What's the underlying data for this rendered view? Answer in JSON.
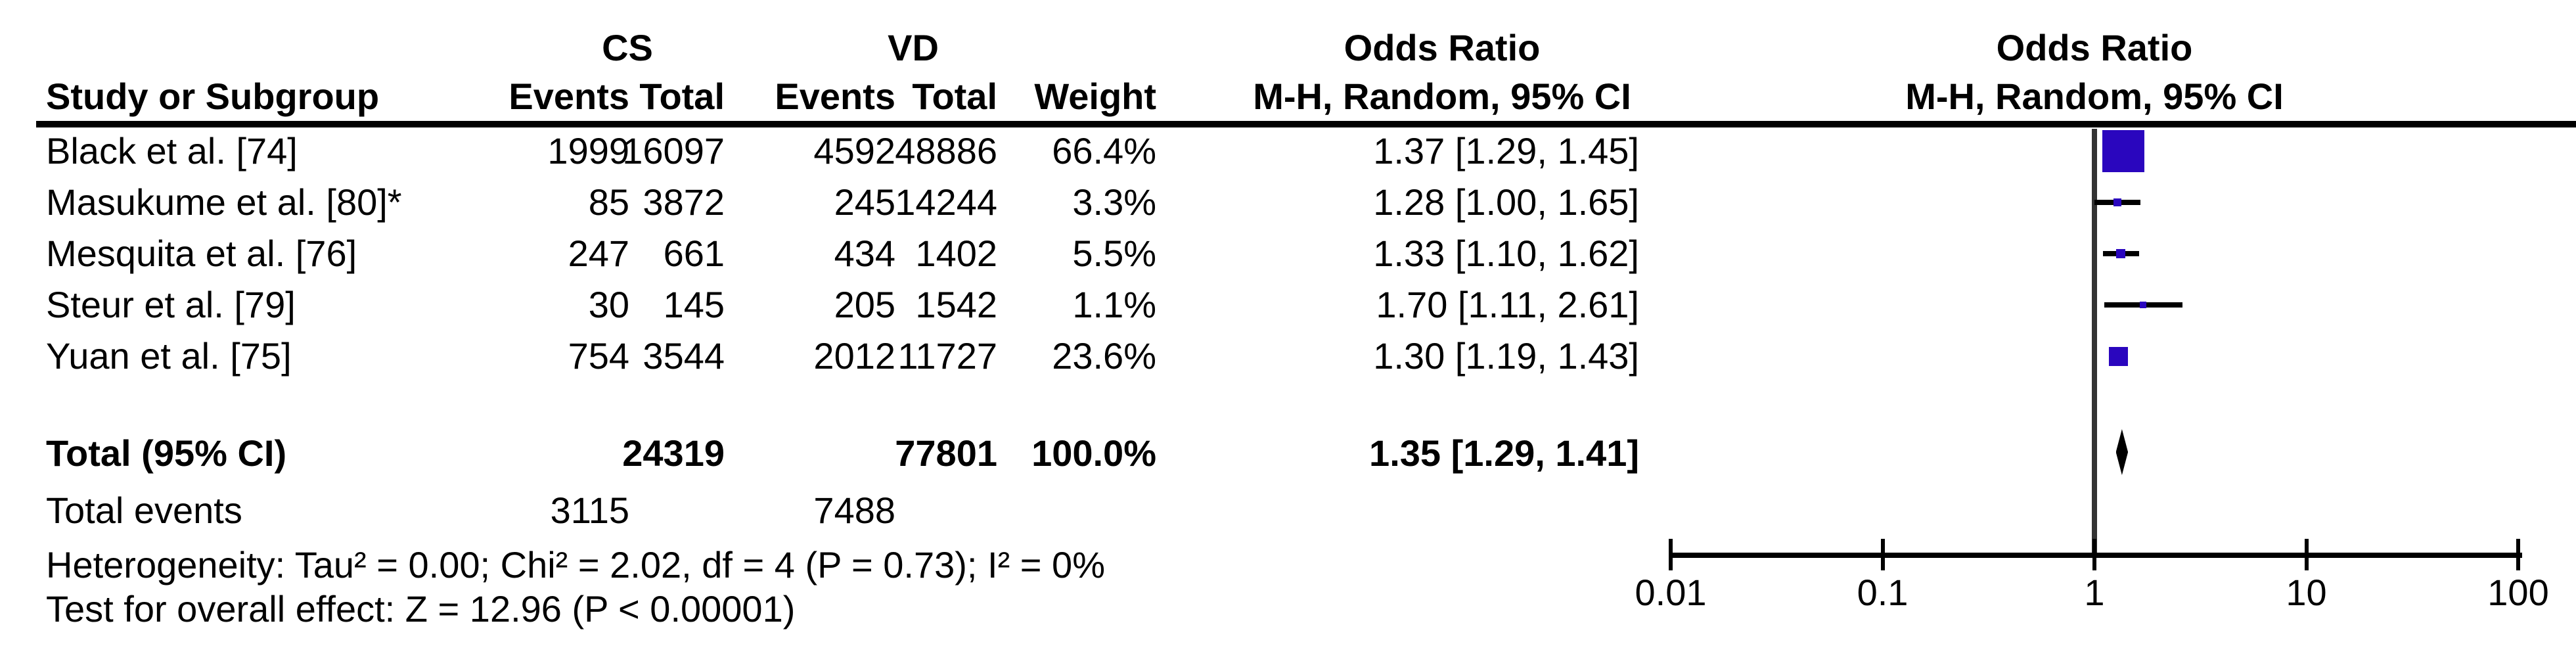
{
  "colors": {
    "marker_blue": "#2a06be",
    "diamond_black": "#000000",
    "midline_gray": "#333333",
    "text": "#000000"
  },
  "header": {
    "group_cs": "CS",
    "group_vd": "VD",
    "study_col": "Study or Subgroup",
    "events_col": "Events",
    "total_col": "Total",
    "events_col2": "Events",
    "total_col2": "Total",
    "weight_col": "Weight",
    "or_line1": "Odds Ratio",
    "or_line2": "M-H, Random, 95% CI",
    "plot_line1": "Odds Ratio",
    "plot_line2": "M-H, Random, 95% CI"
  },
  "rows": [
    {
      "label": "Black et al. [74]",
      "cs_events": "1999",
      "cs_total": "16097",
      "vd_events": "4592",
      "vd_total": "48886",
      "weight": "66.4%",
      "or_ci": "1.37 [1.29, 1.45]"
    },
    {
      "label": "Masukume et al. [80]*",
      "cs_events": "85",
      "cs_total": "3872",
      "vd_events": "245",
      "vd_total": "14244",
      "weight": "3.3%",
      "or_ci": "1.28 [1.00, 1.65]"
    },
    {
      "label": "Mesquita et al. [76]",
      "cs_events": "247",
      "cs_total": "661",
      "vd_events": "434",
      "vd_total": "1402",
      "weight": "5.5%",
      "or_ci": "1.33 [1.10, 1.62]"
    },
    {
      "label": "Steur et al. [79]",
      "cs_events": "30",
      "cs_total": "145",
      "vd_events": "205",
      "vd_total": "1542",
      "weight": "1.1%",
      "or_ci": "1.70 [1.11, 2.61]"
    },
    {
      "label": "Yuan et al. [75]",
      "cs_events": "754",
      "cs_total": "3544",
      "vd_events": "2012",
      "vd_total": "11727",
      "weight": "23.6%",
      "or_ci": "1.30 [1.19, 1.43]"
    }
  ],
  "totals": {
    "label": "Total (95% CI)",
    "cs_total": "24319",
    "vd_total": "77801",
    "weight": "100.0%",
    "or_ci": "1.35 [1.29, 1.41]",
    "events_label": "Total events",
    "cs_events": "3115",
    "vd_events": "7488"
  },
  "footnotes": {
    "heterogeneity": "Heterogeneity: Tau² = 0.00; Chi² = 2.02, df = 4 (P = 0.73); I² = 0%",
    "overall_effect": "Test for overall effect: Z = 12.96 (P < 0.00001)"
  },
  "chart_data": {
    "type": "forest",
    "effect_measure": "Odds Ratio",
    "model": "M-H, Random, 95% CI",
    "x_scale": "log10",
    "x_ticks": [
      "0.01",
      "0.1",
      "1",
      "10",
      "100"
    ],
    "x_tick_values": [
      0.01,
      0.1,
      1,
      10,
      100
    ],
    "null_line": 1,
    "studies": [
      {
        "label": "Black et al. [74]",
        "or": 1.37,
        "ci_low": 1.29,
        "ci_high": 1.45,
        "weight_pct": 66.4
      },
      {
        "label": "Masukume et al. [80]*",
        "or": 1.28,
        "ci_low": 1.0,
        "ci_high": 1.65,
        "weight_pct": 3.3
      },
      {
        "label": "Mesquita et al. [76]",
        "or": 1.33,
        "ci_low": 1.1,
        "ci_high": 1.62,
        "weight_pct": 5.5
      },
      {
        "label": "Steur et al. [79]",
        "or": 1.7,
        "ci_low": 1.11,
        "ci_high": 2.61,
        "weight_pct": 1.1
      },
      {
        "label": "Yuan et al. [75]",
        "or": 1.3,
        "ci_low": 1.19,
        "ci_high": 1.43,
        "weight_pct": 23.6
      }
    ],
    "total": {
      "label": "Total (95% CI)",
      "or": 1.35,
      "ci_low": 1.29,
      "ci_high": 1.41,
      "weight_pct": 100.0
    }
  }
}
